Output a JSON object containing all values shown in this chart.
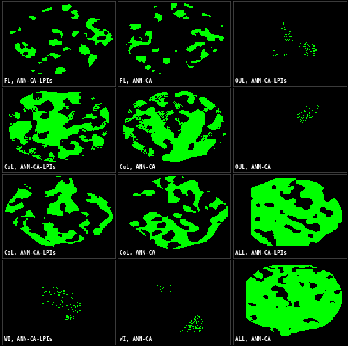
{
  "nrows": 4,
  "ncols": 3,
  "figsize": [
    5.0,
    4.97
  ],
  "dpi": 100,
  "bg_color": "#000000",
  "green_color": [
    0,
    255,
    0
  ],
  "label_color": "#ffffff",
  "label_fontsize": 5.5,
  "subplot_labels": [
    [
      "FL, ANN-CA-LPIs",
      "FL, ANN-CA",
      "OUL, ANN-CA-LPIs"
    ],
    [
      "CuL, ANN-CA-LPIs",
      "CuL, ANN-CA",
      "OUL, ANN-CA"
    ],
    [
      "CoL, ANN-CA-LPIs",
      "CoL, ANN-CA",
      "ALL, ANN-CA-LPIs"
    ],
    [
      "WI, ANN-CA-LPIs",
      "WI, ANN-CA",
      "ALL, ANN-CA"
    ]
  ],
  "img_size": 120,
  "wspace": 0.02,
  "hspace": 0.02
}
